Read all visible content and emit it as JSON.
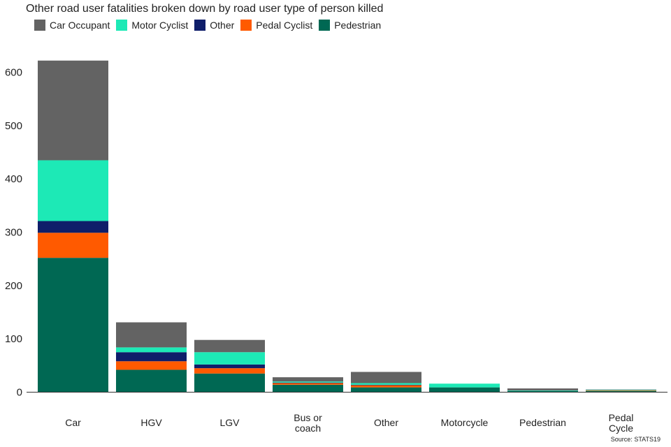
{
  "chart_data": {
    "type": "bar",
    "stacked": true,
    "title": "Other road user fatalities broken down by road user type of person killed",
    "xlabel": "",
    "ylabel": "",
    "ylim": [
      0,
      640
    ],
    "yticks": [
      0,
      100,
      200,
      300,
      400,
      500,
      600
    ],
    "grid": false,
    "legend_position": "top-left",
    "categories": [
      "Car",
      "HGV",
      "LGV",
      "Bus or\ncoach",
      "Other",
      "Motorcycle",
      "Pedestrian",
      "Pedal\nCycle"
    ],
    "series": [
      {
        "name": "Pedestrian",
        "color": "#006853",
        "values": [
          252,
          42,
          35,
          14,
          9,
          9,
          2,
          2
        ]
      },
      {
        "name": "Pedal Cyclist",
        "color": "#ff5a00",
        "values": [
          47,
          16,
          10,
          3,
          4,
          0,
          0,
          1
        ]
      },
      {
        "name": "Other",
        "color": "#0f1e6a",
        "values": [
          22,
          17,
          7,
          1,
          1,
          0,
          0,
          0
        ]
      },
      {
        "name": "Motor Cyclist",
        "color": "#1de9b6",
        "values": [
          114,
          9,
          23,
          2,
          3,
          7,
          1,
          1
        ]
      },
      {
        "name": "Car Occupant",
        "color": "#636363",
        "values": [
          187,
          47,
          23,
          8,
          21,
          0,
          4,
          1
        ]
      }
    ],
    "legend_order": [
      "Car Occupant",
      "Motor Cyclist",
      "Other",
      "Pedal Cyclist",
      "Pedestrian"
    ],
    "source": "Source: STATS19"
  }
}
